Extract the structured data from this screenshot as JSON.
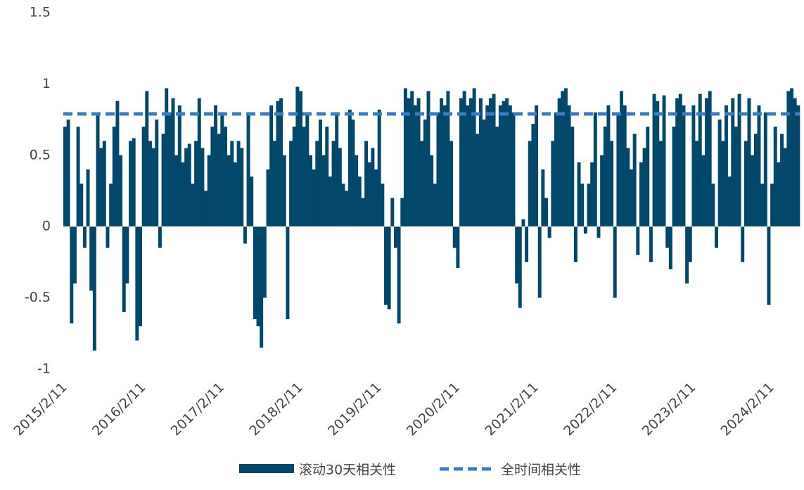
{
  "chart_data": {
    "type": "bar",
    "categories": [
      "2015/2/11",
      null,
      null,
      null,
      null,
      null,
      null,
      null,
      null,
      null,
      null,
      null,
      null,
      null,
      null,
      null,
      null,
      null,
      null,
      null,
      null,
      null,
      null,
      null,
      "2016/2/11",
      null,
      null,
      null,
      null,
      null,
      null,
      null,
      null,
      null,
      null,
      null,
      null,
      null,
      null,
      null,
      null,
      null,
      null,
      null,
      null,
      null,
      null,
      null,
      "2017/2/11",
      null,
      null,
      null,
      null,
      null,
      null,
      null,
      null,
      null,
      null,
      null,
      null,
      null,
      null,
      null,
      null,
      null,
      null,
      null,
      null,
      null,
      null,
      null,
      "2018/2/11",
      null,
      null,
      null,
      null,
      null,
      null,
      null,
      null,
      null,
      null,
      null,
      null,
      null,
      null,
      null,
      null,
      null,
      null,
      null,
      null,
      null,
      null,
      null,
      "2019/2/11",
      null,
      null,
      null,
      null,
      null,
      null,
      null,
      null,
      null,
      null,
      null,
      null,
      null,
      null,
      null,
      null,
      null,
      null,
      null,
      null,
      null,
      null,
      null,
      "2020/2/11",
      null,
      null,
      null,
      null,
      null,
      null,
      null,
      null,
      null,
      null,
      null,
      null,
      null,
      null,
      null,
      null,
      null,
      null,
      null,
      null,
      null,
      null,
      null,
      "2021/2/11",
      null,
      null,
      null,
      null,
      null,
      null,
      null,
      null,
      null,
      null,
      null,
      null,
      null,
      null,
      null,
      null,
      null,
      null,
      null,
      null,
      null,
      null,
      null,
      "2022/2/11",
      null,
      null,
      null,
      null,
      null,
      null,
      null,
      null,
      null,
      null,
      null,
      null,
      null,
      null,
      null,
      null,
      null,
      null,
      null,
      null,
      null,
      null,
      null,
      "2023/2/11",
      null,
      null,
      null,
      null,
      null,
      null,
      null,
      null,
      null,
      null,
      null,
      null,
      null,
      null,
      null,
      null,
      null,
      null,
      null,
      null,
      null,
      null,
      null,
      "2024/2/11",
      null,
      null,
      null,
      null,
      null,
      null,
      null,
      null
    ],
    "series": [
      {
        "name": "滚动30天相关性",
        "color": "#03476b",
        "values": [
          0.7,
          0.75,
          -0.68,
          -0.4,
          0.7,
          0.3,
          -0.15,
          0.4,
          -0.45,
          -0.87,
          0.78,
          0.55,
          0.6,
          -0.15,
          0.3,
          0.7,
          0.88,
          0.5,
          -0.6,
          -0.4,
          0.6,
          0.62,
          -0.8,
          -0.7,
          0.7,
          0.95,
          0.6,
          0.55,
          0.75,
          -0.15,
          0.65,
          0.97,
          0.8,
          0.9,
          0.5,
          0.85,
          0.45,
          0.55,
          0.58,
          0.3,
          0.6,
          0.9,
          0.55,
          0.25,
          0.5,
          0.7,
          0.85,
          0.65,
          0.8,
          0.7,
          0.5,
          0.6,
          0.45,
          0.6,
          0.55,
          -0.12,
          0.8,
          0.35,
          -0.65,
          -0.7,
          -0.85,
          -0.5,
          0.4,
          0.85,
          0.6,
          0.88,
          0.9,
          0.5,
          -0.65,
          0.6,
          0.7,
          0.98,
          0.95,
          0.7,
          0.8,
          0.5,
          0.4,
          0.6,
          0.75,
          0.5,
          0.7,
          0.35,
          0.6,
          0.8,
          0.55,
          0.3,
          0.25,
          0.82,
          0.75,
          0.5,
          0.35,
          0.2,
          0.6,
          0.45,
          0.55,
          0.4,
          0.82,
          0.3,
          -0.55,
          -0.58,
          0.2,
          -0.15,
          -0.68,
          0.2,
          0.97,
          0.9,
          0.95,
          0.85,
          0.9,
          0.6,
          0.75,
          0.95,
          0.5,
          0.3,
          0.8,
          0.9,
          0.85,
          0.95,
          0.6,
          -0.15,
          -0.29,
          0.9,
          0.95,
          0.85,
          0.9,
          0.97,
          0.65,
          0.9,
          0.75,
          0.85,
          0.9,
          0.93,
          0.7,
          0.85,
          0.88,
          0.9,
          0.85,
          0.8,
          -0.4,
          -0.57,
          0.05,
          -0.25,
          0.6,
          0.72,
          0.85,
          -0.5,
          0.4,
          0.2,
          -0.08,
          0.6,
          0.8,
          0.9,
          0.95,
          0.97,
          0.85,
          0.7,
          -0.25,
          0.45,
          0.3,
          -0.05,
          0.3,
          0.45,
          0.8,
          -0.08,
          0.5,
          0.7,
          0.85,
          0.6,
          -0.5,
          0.8,
          0.95,
          0.85,
          0.55,
          0.4,
          0.65,
          -0.2,
          0.45,
          0.55,
          0.7,
          -0.25,
          0.93,
          0.88,
          0.6,
          0.92,
          -0.15,
          -0.3,
          0.7,
          0.9,
          0.93,
          0.85,
          -0.4,
          -0.25,
          0.85,
          0.6,
          0.93,
          0.5,
          0.9,
          0.95,
          0.3,
          -0.15,
          0.75,
          0.6,
          0.85,
          0.35,
          0.9,
          0.7,
          0.93,
          -0.25,
          0.6,
          0.9,
          0.5,
          0.65,
          0.85,
          0.3,
          0.8,
          -0.55,
          0.3,
          0.7,
          0.45,
          0.65,
          0.55,
          0.95,
          0.97,
          0.9,
          0.85
        ]
      }
    ],
    "reference_line": {
      "name": "全时间相关性",
      "color": "#3d7bbf",
      "value": 0.79,
      "dashed": true
    },
    "ylim": [
      -1,
      1.5
    ],
    "yticks": [
      -1,
      -0.5,
      0,
      0.5,
      1,
      1.5
    ],
    "grid": false
  }
}
